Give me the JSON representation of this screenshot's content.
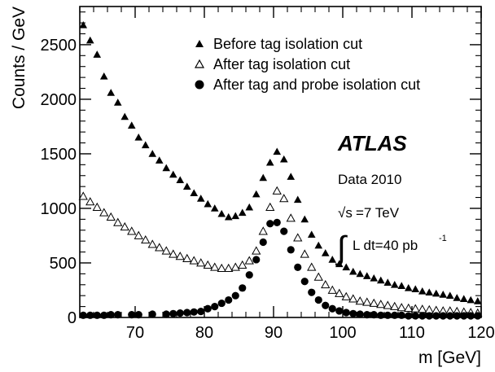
{
  "chart_data": {
    "type": "scatter",
    "title": "",
    "xlabel": "m [GeV]",
    "ylabel": "Counts / GeV",
    "xlim": [
      62,
      120
    ],
    "ylim": [
      0,
      2850
    ],
    "xticks": [
      70,
      80,
      90,
      100,
      110,
      120
    ],
    "yticks": [
      0,
      500,
      1000,
      1500,
      2000,
      2500
    ],
    "xtick_labels": [
      "70",
      "80",
      "90",
      "100",
      "110",
      "120"
    ],
    "ytick_labels": [
      "0",
      "500",
      "1000",
      "1500",
      "2000",
      "2500"
    ],
    "grid": false,
    "legend_position": "top-right",
    "annotations": {
      "experiment": "ATLAS",
      "dataset": "Data 2010",
      "energy_sqrt": "√s",
      "energy_rest": "=7 TeV",
      "lumi_integral": "∫",
      "lumi_text": "L dt=40 pb",
      "lumi_exp": "-1"
    },
    "series": [
      {
        "name": "Before tag isolation cut",
        "marker": "filled-triangle",
        "x": [
          62.5,
          63.5,
          64.5,
          65.5,
          66.5,
          67.5,
          68.5,
          69.5,
          70.5,
          71.5,
          72.5,
          73.5,
          74.5,
          75.5,
          76.5,
          77.5,
          78.5,
          79.5,
          80.5,
          81.5,
          82.5,
          83.5,
          84.5,
          85.5,
          86.5,
          87.5,
          88.5,
          89.5,
          90.5,
          91.5,
          92.5,
          93.5,
          94.5,
          95.5,
          96.5,
          97.5,
          98.5,
          99.5,
          100.5,
          101.5,
          102.5,
          103.5,
          104.5,
          105.5,
          106.5,
          107.5,
          108.5,
          109.5,
          110.5,
          111.5,
          112.5,
          113.5,
          114.5,
          115.5,
          116.5,
          117.5,
          118.5,
          119.5
        ],
        "y": [
          2680,
          2540,
          2410,
          2210,
          2060,
          1970,
          1840,
          1760,
          1650,
          1580,
          1500,
          1440,
          1370,
          1310,
          1260,
          1200,
          1140,
          1090,
          1040,
          1000,
          950,
          920,
          930,
          960,
          1010,
          1130,
          1280,
          1420,
          1520,
          1450,
          1290,
          1080,
          900,
          760,
          660,
          590,
          530,
          490,
          460,
          420,
          400,
          380,
          360,
          340,
          320,
          300,
          290,
          270,
          260,
          240,
          230,
          220,
          210,
          200,
          180,
          170,
          160,
          150
        ]
      },
      {
        "name": "After tag isolation cut",
        "marker": "open-triangle",
        "x": [
          62.5,
          63.5,
          64.5,
          65.5,
          66.5,
          67.5,
          68.5,
          69.5,
          70.5,
          71.5,
          72.5,
          73.5,
          74.5,
          75.5,
          76.5,
          77.5,
          78.5,
          79.5,
          80.5,
          81.5,
          82.5,
          83.5,
          84.5,
          85.5,
          86.5,
          87.5,
          88.5,
          89.5,
          90.5,
          91.5,
          92.5,
          93.5,
          94.5,
          95.5,
          96.5,
          97.5,
          98.5,
          99.5,
          100.5,
          101.5,
          102.5,
          103.5,
          104.5,
          105.5,
          106.5,
          107.5,
          108.5,
          109.5,
          110.5,
          111.5,
          112.5,
          113.5,
          114.5,
          115.5,
          116.5,
          117.5,
          118.5,
          119.5
        ],
        "y": [
          1110,
          1060,
          1010,
          960,
          920,
          870,
          830,
          790,
          750,
          710,
          670,
          640,
          610,
          580,
          560,
          540,
          520,
          500,
          480,
          460,
          450,
          450,
          460,
          480,
          520,
          610,
          790,
          1010,
          1160,
          1090,
          910,
          730,
          580,
          460,
          370,
          300,
          250,
          220,
          190,
          170,
          150,
          140,
          130,
          120,
          110,
          100,
          90,
          85,
          80,
          75,
          70,
          65,
          60,
          60,
          55,
          50,
          45,
          40
        ]
      },
      {
        "name": "After tag and probe isolation cut",
        "marker": "filled-circle",
        "x": [
          62.5,
          63.5,
          64.5,
          65.5,
          66.5,
          67.5,
          69.5,
          70.5,
          72.5,
          74.5,
          75.5,
          76.5,
          77.5,
          78.5,
          79.5,
          80.5,
          81.5,
          82.5,
          83.5,
          84.5,
          85.5,
          86.5,
          87.5,
          88.5,
          89.5,
          90.5,
          91.5,
          92.5,
          93.5,
          94.5,
          95.5,
          96.5,
          97.5,
          98.5,
          99.5,
          100.5,
          101.5,
          102.5,
          103.5,
          104.5,
          105.5,
          106.5,
          107.5,
          108.5,
          109.5,
          110.5,
          111.5,
          112.5,
          113.5,
          114.5,
          115.5,
          116.5,
          117.5,
          118.5,
          119.5
        ],
        "y": [
          20,
          20,
          20,
          20,
          25,
          25,
          25,
          25,
          30,
          30,
          35,
          40,
          45,
          50,
          55,
          80,
          100,
          130,
          160,
          200,
          270,
          390,
          530,
          690,
          860,
          870,
          790,
          620,
          460,
          330,
          230,
          160,
          110,
          80,
          60,
          45,
          35,
          30,
          25,
          25,
          20,
          20,
          20,
          20,
          15,
          15,
          15,
          15,
          15,
          15,
          15,
          15,
          15,
          15,
          15
        ]
      }
    ]
  }
}
